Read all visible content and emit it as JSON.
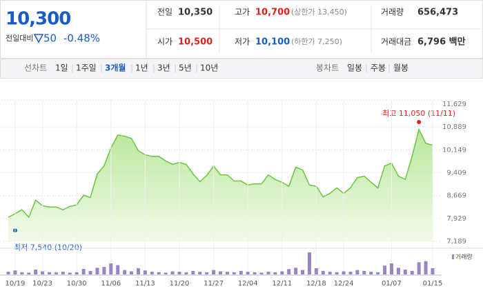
{
  "header": {
    "price": "10,300",
    "change_label": "전일대비",
    "change": "50",
    "change_pct": "-0.48%",
    "stats": [
      [
        {
          "label": "전일",
          "value": "10,350"
        },
        {
          "label": "고가",
          "value": "10,700",
          "note": "(상한가 13,450)"
        },
        {
          "label": "거래량",
          "value": "656,473"
        }
      ],
      [
        {
          "label": "시가",
          "value": "10,500"
        },
        {
          "label": "저가",
          "value": "10,100",
          "note": "(하한가 7,250)"
        },
        {
          "label": "거래대금",
          "value": "6,796 백만"
        }
      ]
    ]
  },
  "tabs": {
    "line_label": "선차트",
    "line_tabs": [
      {
        "label": "1일"
      },
      {
        "label": "1주일"
      },
      {
        "label": "3개월",
        "selected": true
      },
      {
        "label": "1년"
      },
      {
        "label": "3년"
      },
      {
        "label": "5년"
      },
      {
        "label": "10년"
      }
    ],
    "candle_label": "봉차트",
    "candle_tabs": [
      {
        "label": "일봉"
      },
      {
        "label": "주봉"
      },
      {
        "label": "월봉"
      }
    ]
  },
  "chart_data": [
    {
      "type": "line",
      "color": "#6cc33f",
      "categories": [
        null,
        "10/19",
        null,
        null,
        null,
        "10/23",
        null,
        null,
        null,
        null,
        "10/30",
        null,
        null,
        null,
        null,
        "11/06",
        null,
        null,
        null,
        null,
        "11/13",
        null,
        null,
        null,
        null,
        "11/20",
        null,
        null,
        null,
        null,
        "11/27",
        null,
        null,
        null,
        null,
        "12/04",
        null,
        null,
        null,
        null,
        "12/11",
        null,
        null,
        null,
        null,
        "12/18",
        null,
        null,
        null,
        "12/24",
        null,
        null,
        null,
        null,
        null,
        null,
        "01/07",
        null,
        null,
        null,
        null,
        null,
        "01/15"
      ],
      "values": [
        7970,
        8080,
        8210,
        7970,
        8520,
        8340,
        8300,
        8300,
        8210,
        8320,
        8370,
        8680,
        8610,
        9370,
        9630,
        10210,
        10630,
        10590,
        10520,
        10120,
        9990,
        9940,
        9940,
        9790,
        9680,
        9740,
        9680,
        9370,
        9120,
        9320,
        9630,
        9340,
        9340,
        9140,
        9140,
        9010,
        9050,
        9050,
        9340,
        9190,
        9100,
        8970,
        9590,
        9500,
        9010,
        8970,
        8630,
        8740,
        8920,
        8740,
        8920,
        9250,
        9300,
        9100,
        8920,
        9630,
        9720,
        9300,
        9190,
        9940,
        10810,
        10360,
        10300
      ],
      "ylim": [
        7189,
        11629
      ],
      "yticks": [
        {
          "value": 7189,
          "label": "7,189"
        },
        {
          "value": 7929,
          "label": "7,929"
        },
        {
          "value": 8669,
          "label": "8,669"
        },
        {
          "value": 9409,
          "label": "9,409"
        },
        {
          "value": 10149,
          "label": "10,149"
        },
        {
          "value": 10889,
          "label": "10,889"
        },
        {
          "value": 11629,
          "label": "11,629"
        }
      ],
      "grid": true,
      "annotations": [
        {
          "text": "최고 11,050 (11/11)",
          "value": 11050,
          "color": "#e0201c"
        },
        {
          "text": "최저 7,540 (10/20)",
          "value": 7540,
          "color": "#1f5fbf"
        }
      ]
    },
    {
      "type": "bar",
      "name": "거래량",
      "color": "#9886c4",
      "ylim": [
        0,
        100
      ],
      "values": [
        12,
        18,
        10,
        8,
        22,
        14,
        10,
        9,
        12,
        8,
        10,
        25,
        16,
        30,
        34,
        50,
        42,
        20,
        14,
        28,
        18,
        12,
        10,
        8,
        14,
        12,
        9,
        16,
        12,
        10,
        20,
        14,
        12,
        10,
        16,
        12,
        10,
        8,
        12,
        10,
        14,
        24,
        30,
        20,
        100,
        28,
        16,
        12,
        10,
        14,
        12,
        20,
        16,
        12,
        10,
        40,
        50,
        30,
        22,
        16,
        55,
        60,
        28
      ]
    }
  ]
}
